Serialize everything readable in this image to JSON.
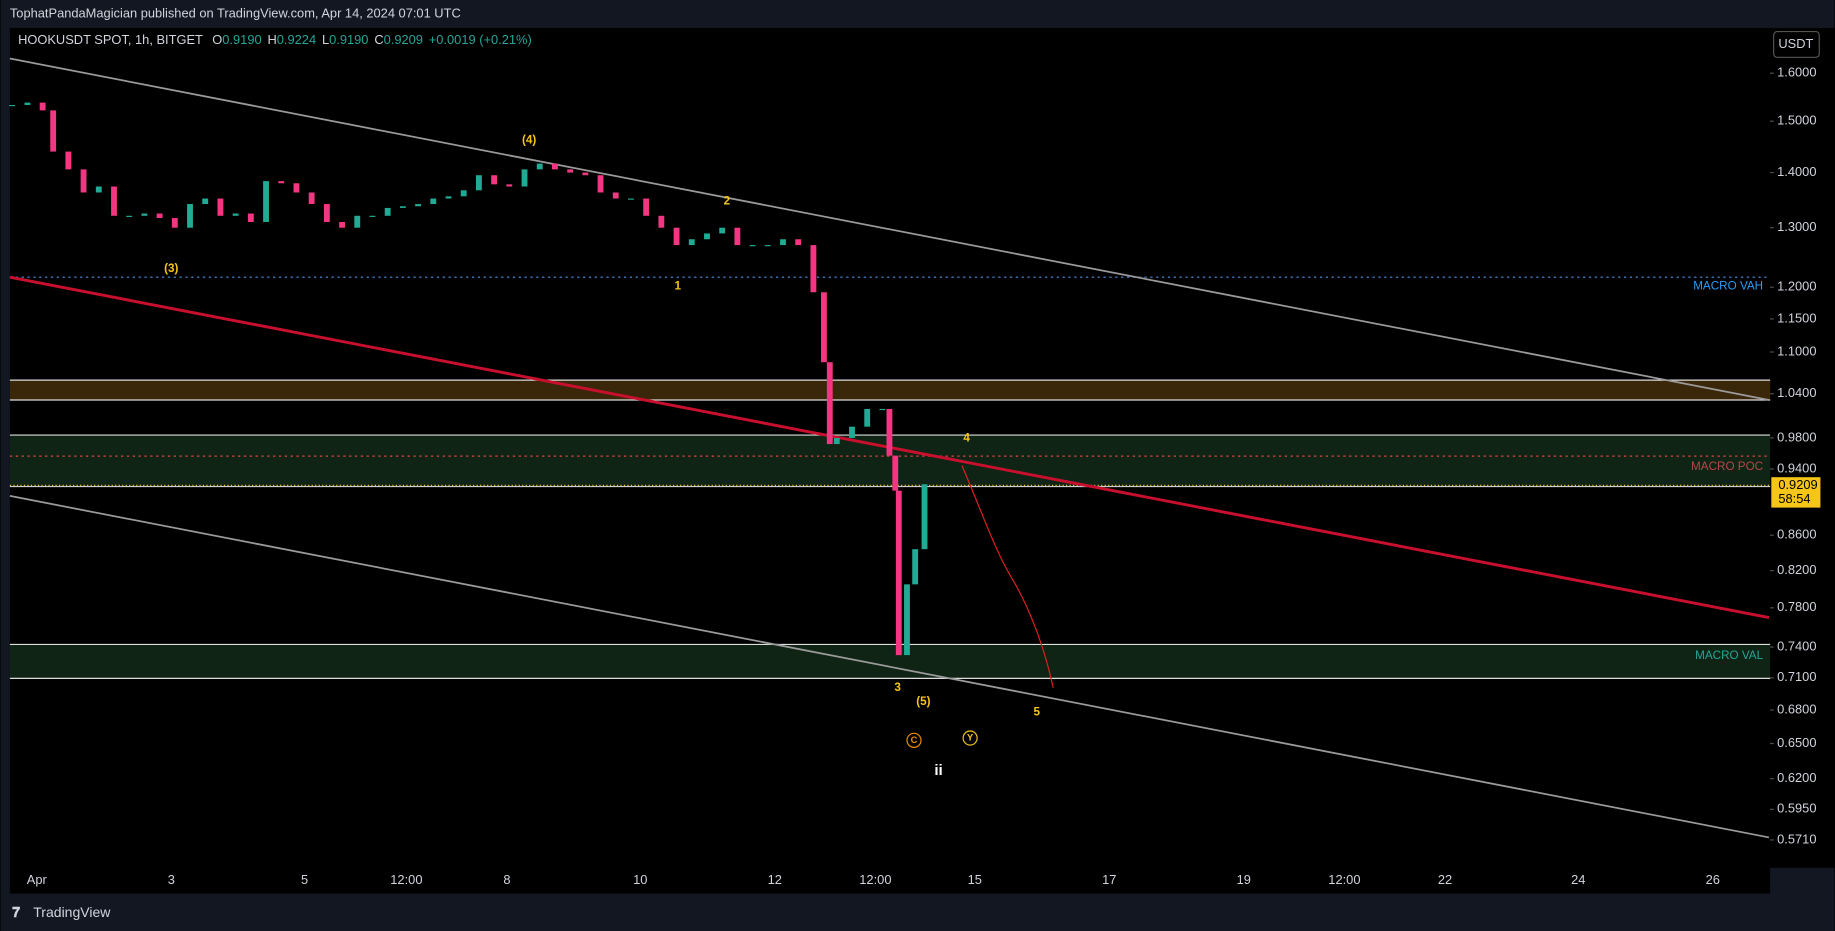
{
  "header": {
    "text": "TophatPandaMagician published on TradingView.com, Apr 14, 2024 07:01 UTC"
  },
  "legend": {
    "symbol": "HOOKUSDT SPOT, 1h, BITGET",
    "open_label": "O",
    "open": "0.9190",
    "high_label": "H",
    "high": "0.9224",
    "low_label": "L",
    "low": "0.9190",
    "close_label": "C",
    "close": "0.9209",
    "change": "+0.0019 (+0.21%)"
  },
  "currency_button": "USDT",
  "price_tag": {
    "price": "0.9209",
    "countdown": "58:54"
  },
  "chart_data": {
    "type": "candles",
    "log": true,
    "ylim": [
      0.55,
      1.7
    ],
    "yticks": [
      {
        "value": 1.6,
        "label": "1.6000"
      },
      {
        "value": 1.5,
        "label": "1.5000"
      },
      {
        "value": 1.4,
        "label": "1.4000"
      },
      {
        "value": 1.3,
        "label": "1.3000"
      },
      {
        "value": 1.2,
        "label": "1.2000"
      },
      {
        "value": 1.15,
        "label": "1.1500"
      },
      {
        "value": 1.1,
        "label": "1.1000"
      },
      {
        "value": 1.04,
        "label": "1.0400"
      },
      {
        "value": 0.98,
        "label": "0.9800"
      },
      {
        "value": 0.94,
        "label": "0.9400"
      },
      {
        "value": 0.86,
        "label": "0.8600"
      },
      {
        "value": 0.82,
        "label": "0.8200"
      },
      {
        "value": 0.78,
        "label": "0.7800"
      },
      {
        "value": 0.74,
        "label": "0.7400"
      },
      {
        "value": 0.71,
        "label": "0.7100"
      },
      {
        "value": 0.68,
        "label": "0.6800"
      },
      {
        "value": 0.65,
        "label": "0.6500"
      },
      {
        "value": 0.62,
        "label": "0.6200"
      },
      {
        "value": 0.595,
        "label": "0.5950"
      },
      {
        "value": 0.571,
        "label": "0.5710"
      }
    ],
    "values": [
      1.533,
      1.538,
      1.522,
      1.44,
      1.406,
      1.363,
      1.374,
      1.321,
      1.321,
      1.325,
      1.317,
      1.3,
      1.342,
      1.352,
      1.321,
      1.325,
      1.31,
      1.384,
      1.38,
      1.363,
      1.342,
      1.31,
      1.3,
      1.321,
      1.321,
      1.335,
      1.338,
      1.342,
      1.352,
      1.356,
      1.367,
      1.395,
      1.378,
      1.374,
      1.406,
      1.417,
      1.406,
      1.4,
      1.395,
      1.363,
      1.352,
      1.352,
      1.321,
      1.3,
      1.27,
      1.28,
      1.29,
      1.3,
      1.27,
      1.27,
      1.27,
      1.28,
      1.27,
      1.192,
      1.085,
      0.972,
      0.98,
      0.995,
      1.019,
      1.019,
      0.957,
      0.913,
      0.732,
      0.805,
      0.844,
      0.9209
    ],
    "x_labels": [
      "Apr",
      "3",
      "5",
      "12:00",
      "8",
      "10",
      "12",
      "12:00",
      "15",
      "17",
      "19",
      "12:00",
      "22",
      "24",
      "26"
    ]
  },
  "zones": {
    "vah": "MACRO VAH",
    "poc": "MACRO POC",
    "val": "MACRO VAL"
  },
  "waves": [
    "(4)",
    "2",
    "(3)",
    "1",
    "4",
    "3",
    "(5)",
    "5",
    "C",
    "Y",
    "ii"
  ],
  "footer": {
    "brand": "TradingView"
  }
}
